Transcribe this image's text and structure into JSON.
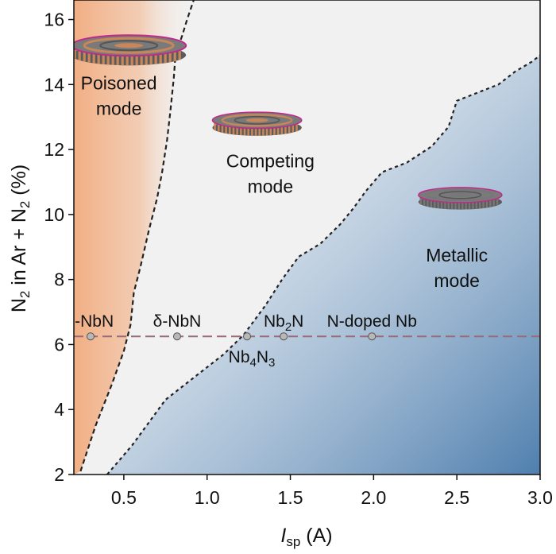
{
  "chart_data": {
    "type": "area",
    "title": "",
    "xlabel_main": "I",
    "xlabel_sub": "sp",
    "xlabel_unit": " (A)",
    "ylabel_parts": {
      "a": "N",
      "a_sub": "2",
      "b": " in Ar + N",
      "b_sub": "2",
      "c": " (%)"
    },
    "xlim": [
      0.2,
      3.0
    ],
    "ylim": [
      2,
      16.6
    ],
    "xticks": [
      0.5,
      1.0,
      1.5,
      2.0,
      2.5,
      3.0
    ],
    "xtick_labels": [
      "0.5",
      "1.0",
      "1.5",
      "2.0",
      "2.5",
      "3.0"
    ],
    "yticks": [
      2,
      4,
      6,
      8,
      10,
      12,
      14,
      16
    ],
    "ytick_labels": [
      "2",
      "4",
      "6",
      "8",
      "10",
      "12",
      "14",
      "16"
    ],
    "grid": false,
    "colors": {
      "poisoned": "#f2b48a",
      "competing": "#f2f2f2",
      "metallic": "#5f8db8",
      "boundary": "#222222",
      "line": "#9a6a78",
      "marker": "#b8b8b8"
    },
    "regions": [
      {
        "name": "Poisoned mode",
        "label_line1": "Poisoned",
        "label_line2": "mode",
        "lx": 0.47,
        "ly": 13.85
      },
      {
        "name": "Competing mode",
        "label_line1": "Competing",
        "label_line2": "mode",
        "lx": 1.38,
        "ly": 11.45
      },
      {
        "name": "Metallic mode",
        "label_line1": "Metallic",
        "label_line2": "mode",
        "lx": 2.5,
        "ly": 8.55
      }
    ],
    "boundaries": [
      {
        "name": "poisoned-competing boundary",
        "x": [
          0.24,
          0.33,
          0.43,
          0.5,
          0.54,
          0.56,
          0.6,
          0.65,
          0.7,
          0.73,
          0.76,
          0.78,
          0.8,
          0.81,
          0.85,
          0.88,
          0.92
        ],
        "y": [
          2.1,
          3.5,
          4.8,
          5.8,
          6.6,
          7.6,
          8.4,
          9.5,
          10.5,
          11.3,
          12.3,
          13.2,
          14.2,
          14.9,
          15.5,
          16.0,
          16.6
        ]
      },
      {
        "name": "competing-metallic boundary",
        "x": [
          0.4,
          0.55,
          0.75,
          0.95,
          1.1,
          1.22,
          1.35,
          1.45,
          1.55,
          1.68,
          1.8,
          1.88,
          1.95,
          2.05,
          2.2,
          2.35,
          2.45,
          2.5,
          2.6,
          2.75,
          2.85,
          2.95,
          3.0
        ],
        "y": [
          2.0,
          2.9,
          4.3,
          5.1,
          5.7,
          6.3,
          7.2,
          8.0,
          8.7,
          9.1,
          9.7,
          10.2,
          10.7,
          11.3,
          11.6,
          12.1,
          12.7,
          13.5,
          13.7,
          14.0,
          14.4,
          14.7,
          14.9
        ]
      }
    ],
    "reference_line": {
      "y": 6.25,
      "x0": 0.2,
      "x1": 3.0
    },
    "phases": [
      {
        "name": "ε-NbN",
        "x": 0.3,
        "y": 6.25,
        "label": "ε-NbN",
        "label_pos": "above"
      },
      {
        "name": "δ-NbN",
        "x": 0.82,
        "y": 6.25,
        "label": "δ-NbN",
        "label_pos": "above"
      },
      {
        "name": "Nb4N3",
        "x": 1.24,
        "y": 6.25,
        "label": "Nb",
        "label_sub": "4",
        "label_end": "N",
        "label_sub2": "3",
        "label_pos": "below"
      },
      {
        "name": "Nb2N",
        "x": 1.46,
        "y": 6.25,
        "label": "Nb",
        "label_sub": "2",
        "label_end": "N",
        "label_pos": "above"
      },
      {
        "name": "N-doped Nb",
        "x": 1.99,
        "y": 6.25,
        "label": "N-doped Nb",
        "label_pos": "above"
      }
    ],
    "target_icons": [
      {
        "name": "poisoned",
        "x": 0.53,
        "y": 15.2,
        "scale": 1.0,
        "ring_color": "#c8875a"
      },
      {
        "name": "competing",
        "x": 1.3,
        "y": 12.9,
        "scale": 0.78,
        "ring_color": "#c8875a"
      },
      {
        "name": "metallic",
        "x": 2.52,
        "y": 10.6,
        "scale": 0.73,
        "ring_color": "#777777"
      }
    ]
  }
}
